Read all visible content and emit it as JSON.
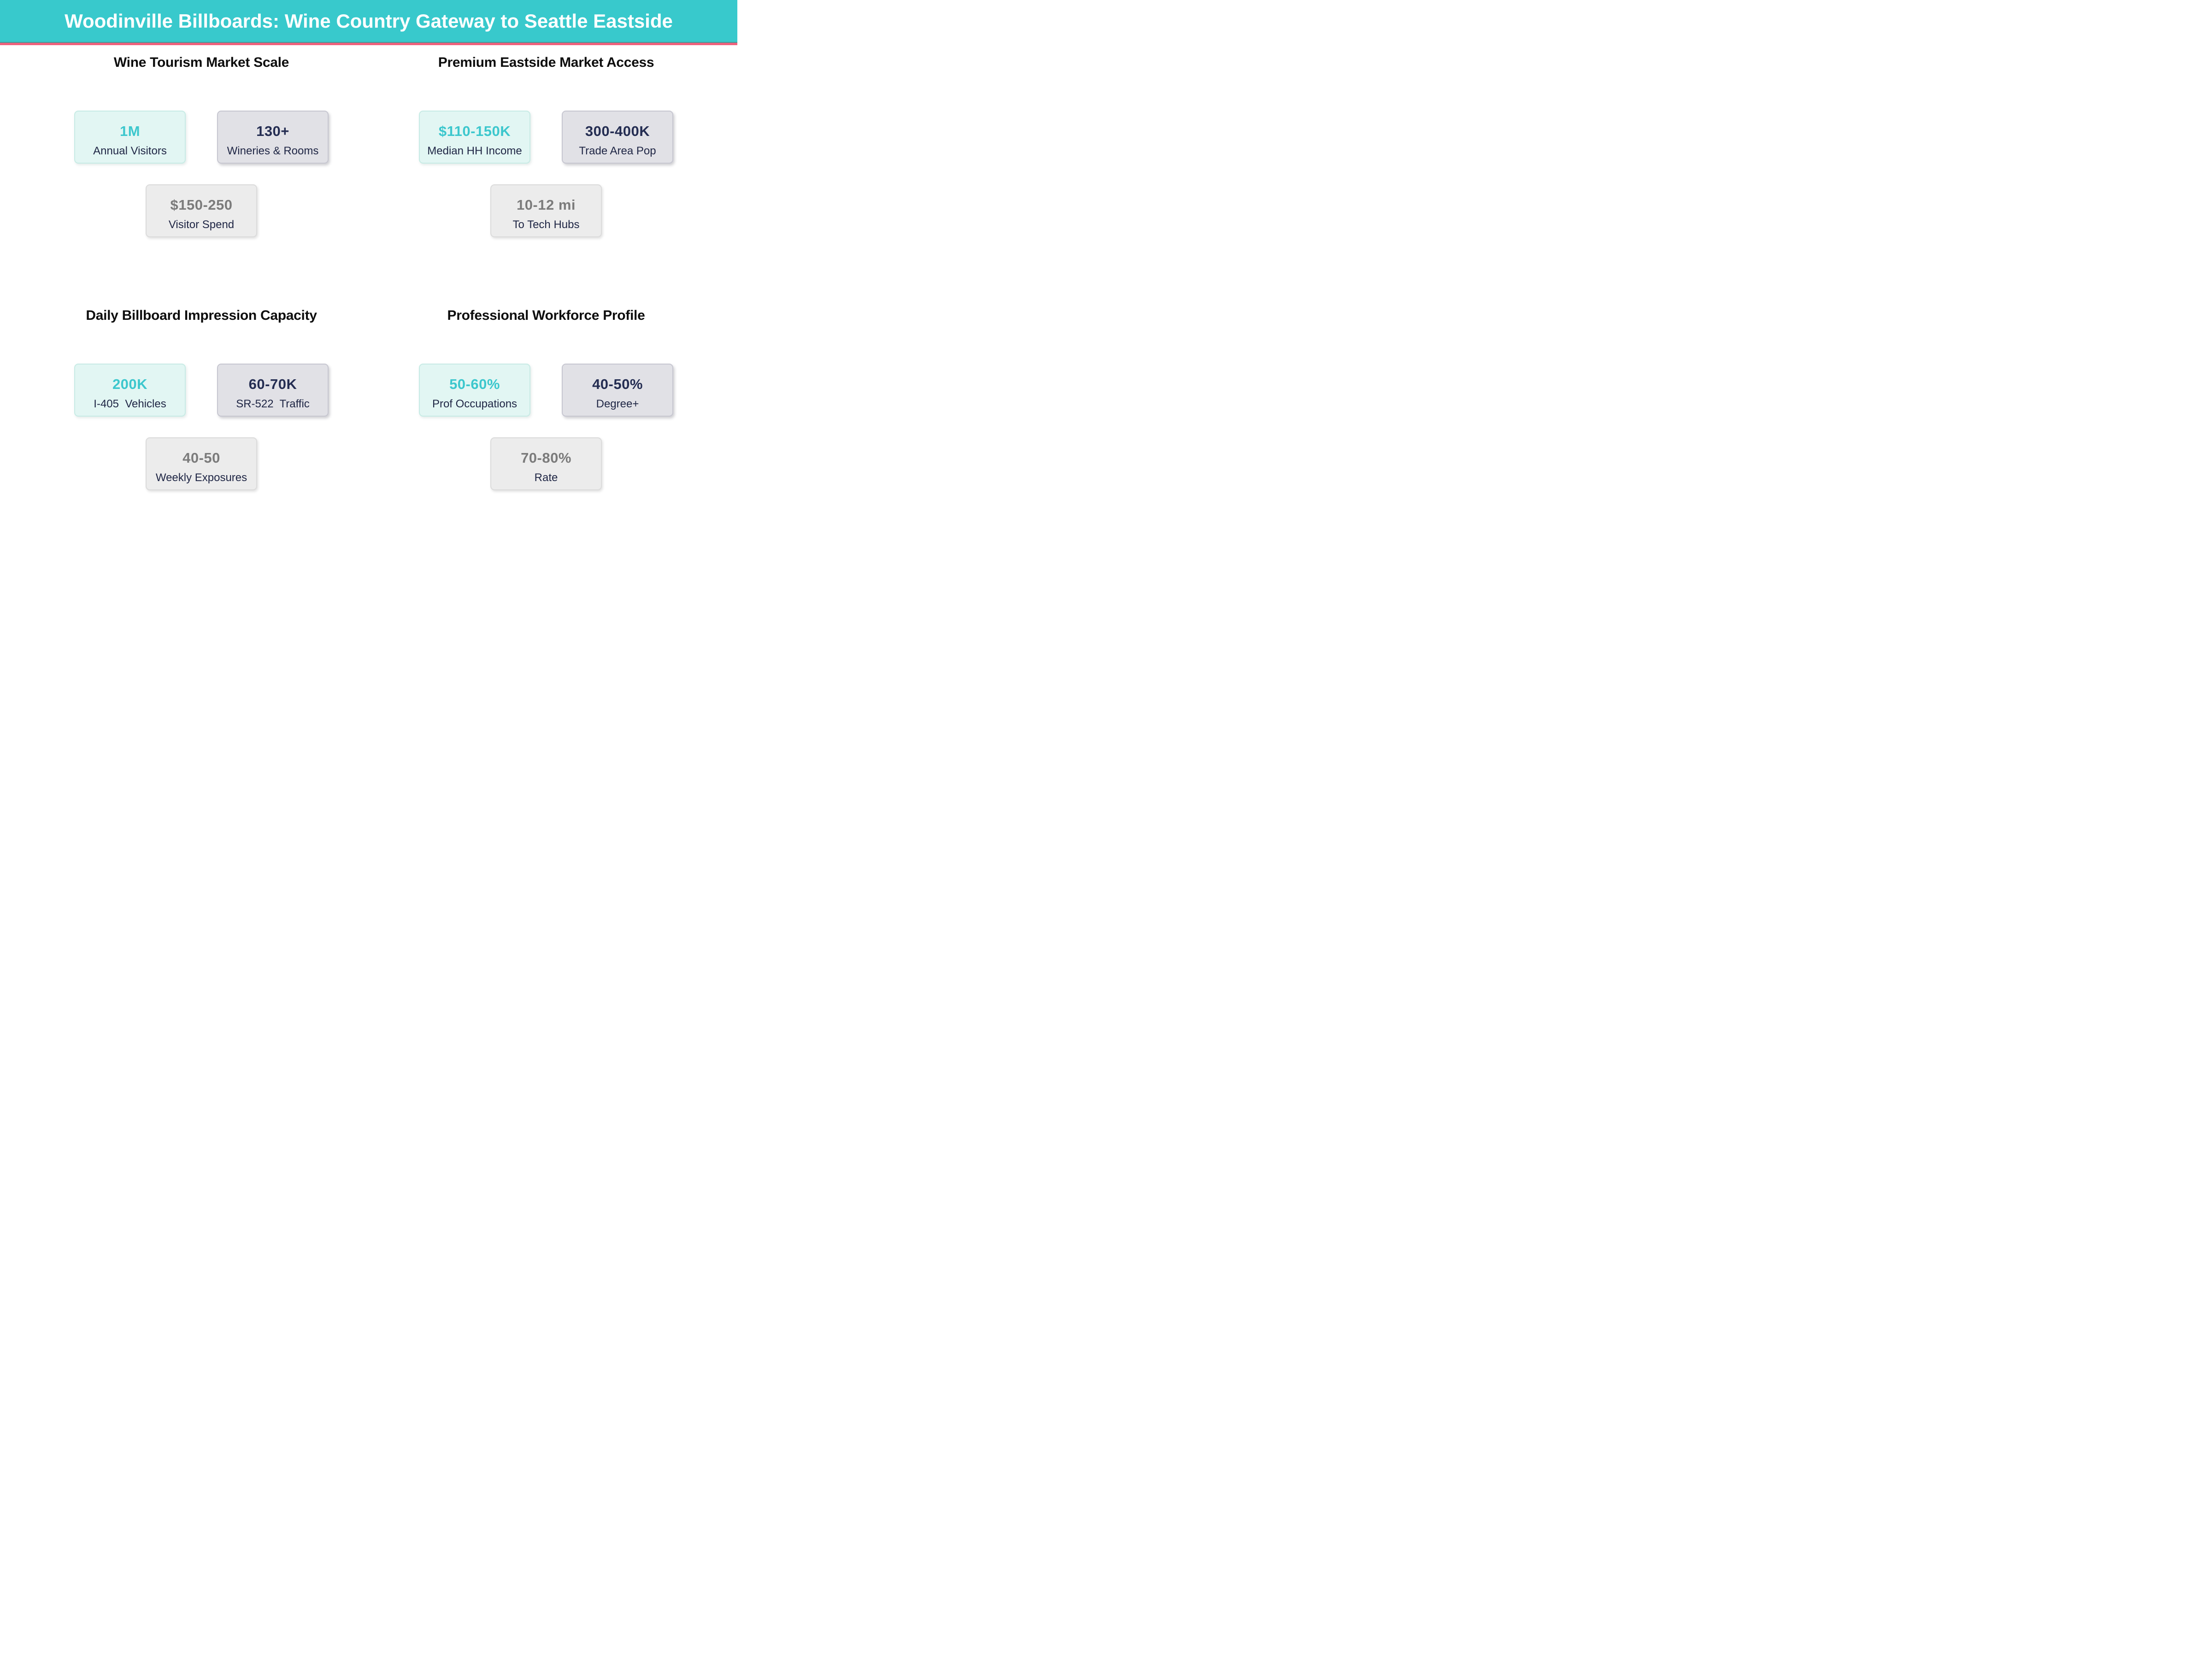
{
  "header": {
    "title": "Woodinville Billboards: Wine Country Gateway to Seattle Eastside"
  },
  "colors": {
    "header_bg": "#38c9cc",
    "accent_bar": "#f0617c",
    "value_teal": "#3cc7cd",
    "value_navy": "#242d52",
    "value_gray": "#7b7b7b",
    "label_navy": "#1e2544",
    "mint_card_bg": "#e2f6f3",
    "gray_card_bg": "#e1e1e6",
    "light_card_bg": "#ececec"
  },
  "quadrants": [
    {
      "heading": "Wine Tourism Market Scale",
      "cards": [
        {
          "value": "1M",
          "label": "Annual Visitors",
          "emphasis": "primary"
        },
        {
          "value": "130+",
          "label": "Wineries & Rooms",
          "emphasis": "secondary"
        },
        {
          "value": "$150-250",
          "label": "Visitor Spend",
          "emphasis": "tertiary"
        }
      ]
    },
    {
      "heading": "Premium Eastside Market Access",
      "cards": [
        {
          "value": "$110-150K",
          "label": "Median HH Income",
          "emphasis": "primary"
        },
        {
          "value": "300-400K",
          "label": "Trade Area Pop",
          "emphasis": "secondary"
        },
        {
          "value": "10-12 mi",
          "label": "To Tech Hubs",
          "emphasis": "tertiary"
        }
      ]
    },
    {
      "heading": "Daily Billboard Impression Capacity",
      "cards": [
        {
          "value": "200K",
          "label": "I-405  Vehicles",
          "emphasis": "primary"
        },
        {
          "value": "60-70K",
          "label": "SR-522  Traffic",
          "emphasis": "secondary"
        },
        {
          "value": "40-50",
          "label": "Weekly Exposures",
          "emphasis": "tertiary"
        }
      ]
    },
    {
      "heading": "Professional Workforce Profile",
      "cards": [
        {
          "value": "50-60%",
          "label": "Prof Occupations",
          "emphasis": "primary"
        },
        {
          "value": "40-50%",
          "label": "Degree+",
          "emphasis": "secondary"
        },
        {
          "value": "70-80%",
          "label": "Rate",
          "emphasis": "tertiary"
        }
      ]
    }
  ],
  "chart_data": {
    "type": "table",
    "title": "Woodinville Billboards: Wine Country Gateway to Seattle Eastside",
    "sections": [
      {
        "heading": "Wine Tourism Market Scale",
        "stats": [
          {
            "label": "Annual Visitors",
            "value": "1M"
          },
          {
            "label": "Wineries & Rooms",
            "value": "130+"
          },
          {
            "label": "Visitor Spend",
            "value": "$150-250"
          }
        ]
      },
      {
        "heading": "Premium Eastside Market Access",
        "stats": [
          {
            "label": "Median HH Income",
            "value": "$110-150K"
          },
          {
            "label": "Trade Area Pop",
            "value": "300-400K"
          },
          {
            "label": "To Tech Hubs",
            "value": "10-12 mi"
          }
        ]
      },
      {
        "heading": "Daily Billboard Impression Capacity",
        "stats": [
          {
            "label": "I-405 Vehicles",
            "value": "200K"
          },
          {
            "label": "SR-522 Traffic",
            "value": "60-70K"
          },
          {
            "label": "Weekly Exposures",
            "value": "40-50"
          }
        ]
      },
      {
        "heading": "Professional Workforce Profile",
        "stats": [
          {
            "label": "Prof Occupations",
            "value": "50-60%"
          },
          {
            "label": "Degree+",
            "value": "40-50%"
          },
          {
            "label": "Rate",
            "value": "70-80%"
          }
        ]
      }
    ],
    "layout": {
      "grid": "2x2",
      "legend": "none",
      "grid_lines": false
    }
  }
}
